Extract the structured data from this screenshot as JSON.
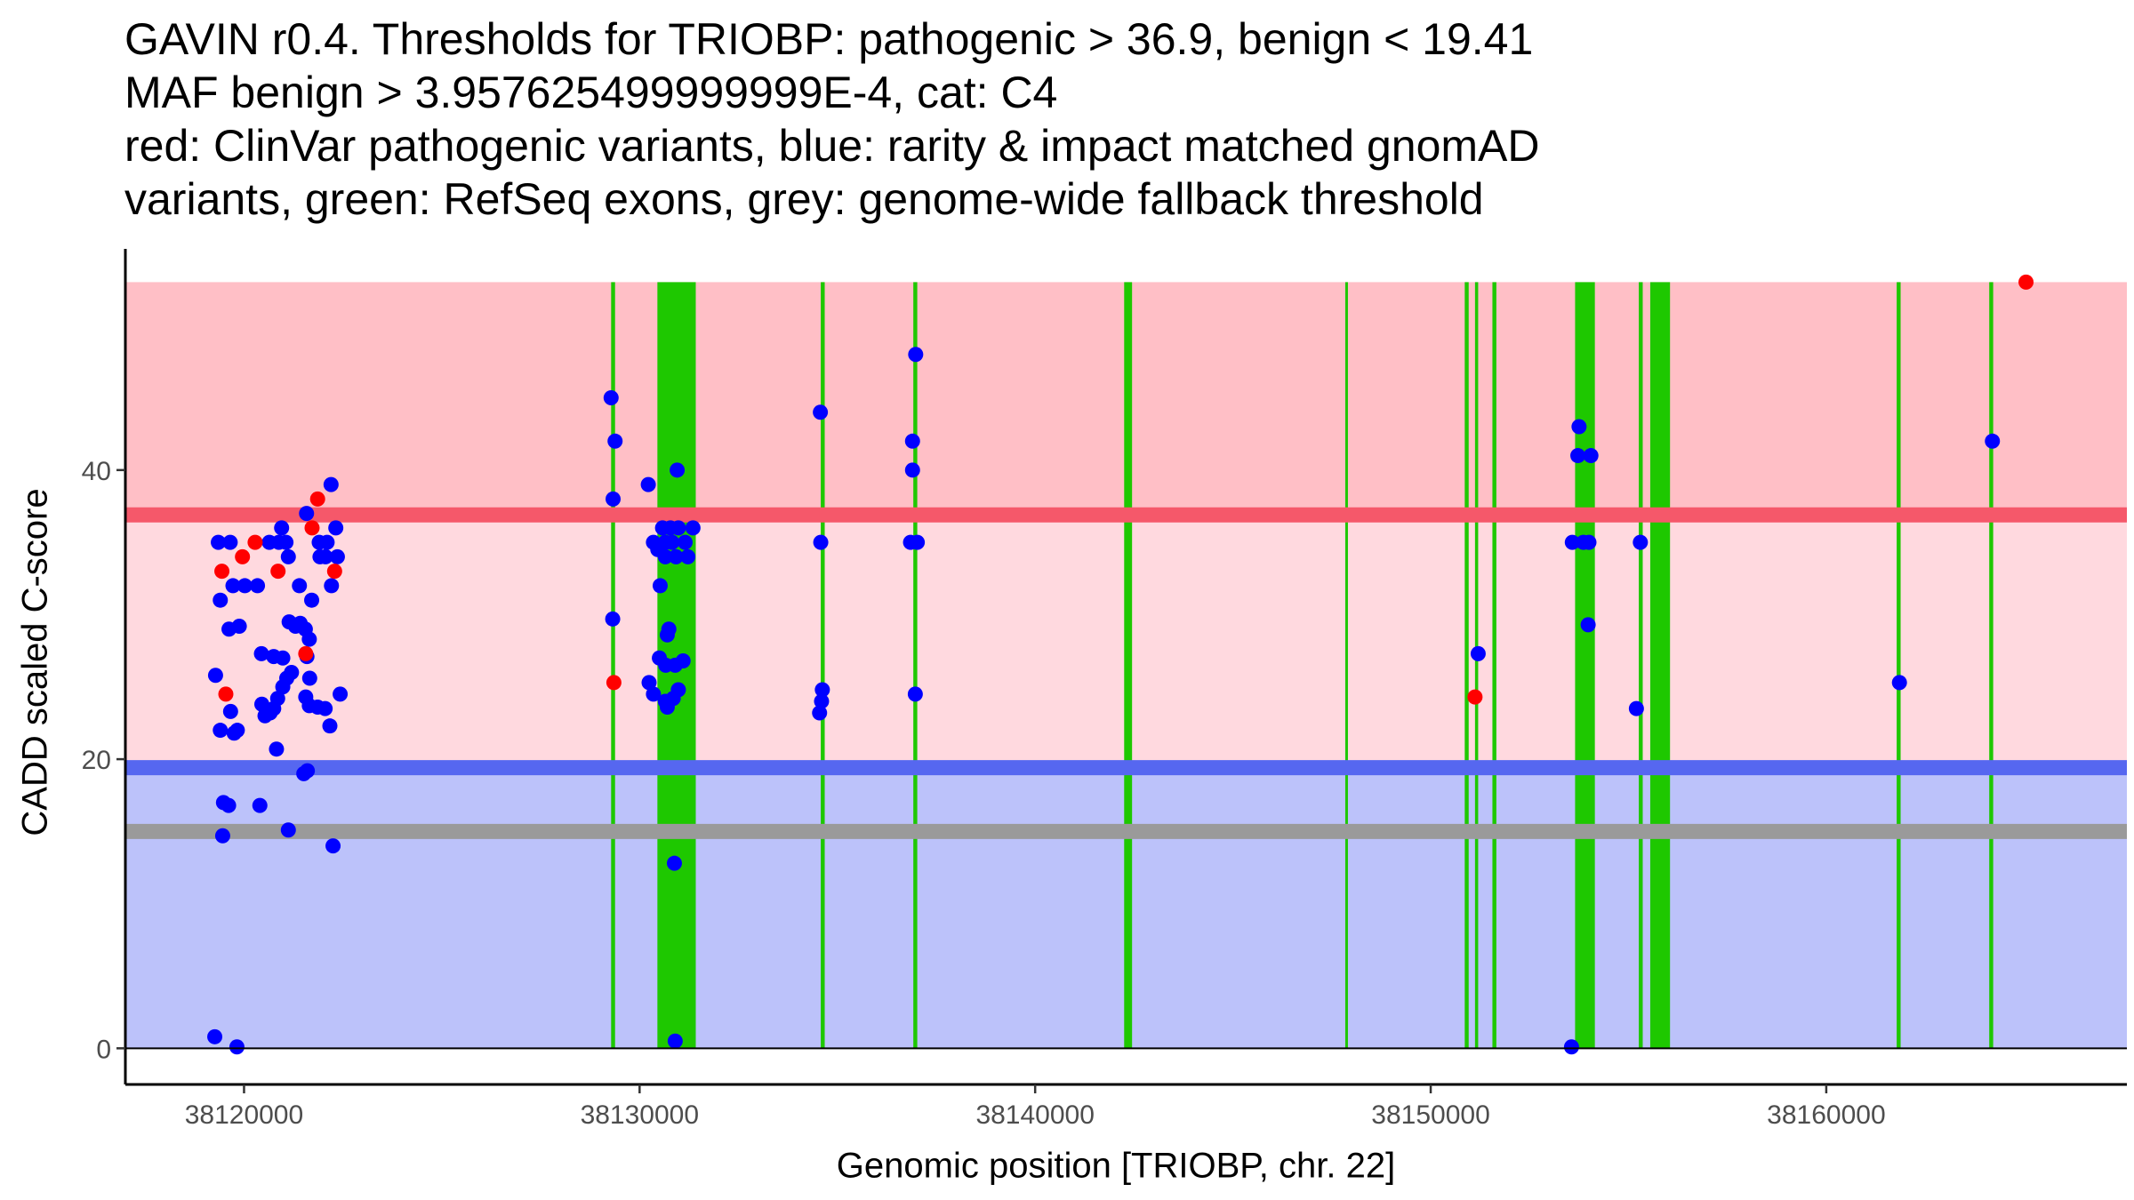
{
  "chart_data": {
    "type": "scatter",
    "title_lines": [
      "GAVIN r0.4. Thresholds for TRIOBP: pathogenic > 36.9, benign < 19.41",
      "MAF benign > 3.957625499999999E-4, cat: C4",
      "red: ClinVar pathogenic variants, blue: rarity & impact matched gnomAD",
      "variants, green: RefSeq exons, grey: genome-wide fallback threshold"
    ],
    "xlabel": "Genomic position [TRIOBP, chr. 22]",
    "ylabel": "CADD scaled C-score",
    "xlim": [
      38117000,
      38167600
    ],
    "ylim": [
      -2.5,
      55.3
    ],
    "x_ticks": [
      38120000,
      38130000,
      38140000,
      38150000,
      38160000
    ],
    "y_ticks": [
      0,
      20,
      40
    ],
    "thresholds": {
      "pathogenic": 36.9,
      "benign": 19.41,
      "genome_wide_fallback": 15,
      "max": 53
    },
    "colors": {
      "pathogenic_zone": "#ffbfc6",
      "vus_zone": "#ffd9df",
      "benign_zone": "#bcc2fa",
      "pathogenic_line": "#f5586a",
      "benign_line": "#5667f0",
      "fallback_line": "#9a9a9a",
      "exon": "#1ec800",
      "clinvar_point": "#ff0000",
      "gnomad_point": "#0000ff"
    },
    "exons": [
      [
        38129280,
        38129380
      ],
      [
        38130450,
        38131420
      ],
      [
        38134580,
        38134680
      ],
      [
        38136920,
        38137020
      ],
      [
        38142250,
        38142450
      ],
      [
        38147840,
        38147900
      ],
      [
        38150860,
        38150960
      ],
      [
        38151120,
        38151200
      ],
      [
        38151560,
        38151660
      ],
      [
        38153650,
        38154150
      ],
      [
        38155260,
        38155360
      ],
      [
        38155550,
        38156050
      ],
      [
        38161780,
        38161880
      ],
      [
        38164120,
        38164220
      ]
    ],
    "series": [
      {
        "name": "ClinVar pathogenic variants",
        "points": [
          [
            38119440,
            33
          ],
          [
            38119540,
            24.5
          ],
          [
            38119960,
            34
          ],
          [
            38120280,
            35
          ],
          [
            38120860,
            33
          ],
          [
            38121560,
            27.3
          ],
          [
            38121720,
            36
          ],
          [
            38121860,
            38
          ],
          [
            38122290,
            33
          ],
          [
            38129350,
            25.3
          ],
          [
            38151120,
            24.3
          ],
          [
            38165050,
            53
          ]
        ]
      },
      {
        "name": "rarity & impact matched gnomAD variants",
        "points": [
          [
            38119350,
            35
          ],
          [
            38119650,
            35
          ],
          [
            38119280,
            25.8
          ],
          [
            38119400,
            31
          ],
          [
            38119720,
            32
          ],
          [
            38120020,
            32
          ],
          [
            38120340,
            32
          ],
          [
            38119620,
            29
          ],
          [
            38119880,
            29.2
          ],
          [
            38119660,
            23.3
          ],
          [
            38119400,
            22
          ],
          [
            38119750,
            21.8
          ],
          [
            38119830,
            22
          ],
          [
            38120450,
            23.8
          ],
          [
            38120530,
            23
          ],
          [
            38120750,
            23.5
          ],
          [
            38120660,
            23.2
          ],
          [
            38120850,
            24.2
          ],
          [
            38120980,
            25
          ],
          [
            38121080,
            25.6
          ],
          [
            38120820,
            20.7
          ],
          [
            38120640,
            35
          ],
          [
            38120880,
            35
          ],
          [
            38120950,
            36
          ],
          [
            38121060,
            35
          ],
          [
            38121200,
            26
          ],
          [
            38121120,
            34
          ],
          [
            38120440,
            27.3
          ],
          [
            38120750,
            27.1
          ],
          [
            38120980,
            27
          ],
          [
            38121140,
            29.5
          ],
          [
            38121300,
            29.2
          ],
          [
            38121420,
            29.4
          ],
          [
            38121550,
            29
          ],
          [
            38121650,
            28.3
          ],
          [
            38121590,
            27.1
          ],
          [
            38121660,
            25.6
          ],
          [
            38121560,
            24.3
          ],
          [
            38121650,
            23.7
          ],
          [
            38121860,
            23.6
          ],
          [
            38122170,
            22.3
          ],
          [
            38122050,
            23.5
          ],
          [
            38121400,
            32
          ],
          [
            38121710,
            31
          ],
          [
            38121900,
            35
          ],
          [
            38122060,
            34
          ],
          [
            38121920,
            34
          ],
          [
            38122100,
            35
          ],
          [
            38122210,
            32
          ],
          [
            38122360,
            34
          ],
          [
            38122320,
            36
          ],
          [
            38122200,
            39
          ],
          [
            38121580,
            37
          ],
          [
            38122430,
            24.5
          ],
          [
            38119480,
            17
          ],
          [
            38119610,
            16.8
          ],
          [
            38120400,
            16.8
          ],
          [
            38121510,
            19
          ],
          [
            38121600,
            19.2
          ],
          [
            38119460,
            14.7
          ],
          [
            38121120,
            15.1
          ],
          [
            38122250,
            14
          ],
          [
            38119260,
            0.8
          ],
          [
            38119820,
            0.1
          ],
          [
            38129280,
            45
          ],
          [
            38129380,
            42
          ],
          [
            38129330,
            38
          ],
          [
            38129320,
            29.7
          ],
          [
            38130220,
            39
          ],
          [
            38130580,
            36
          ],
          [
            38130780,
            36
          ],
          [
            38130980,
            36
          ],
          [
            38130350,
            35
          ],
          [
            38130650,
            35
          ],
          [
            38130820,
            35
          ],
          [
            38131150,
            35
          ],
          [
            38130460,
            34.5
          ],
          [
            38130650,
            34
          ],
          [
            38130920,
            34
          ],
          [
            38131220,
            34
          ],
          [
            38131350,
            36
          ],
          [
            38130520,
            32
          ],
          [
            38130700,
            28.6
          ],
          [
            38130740,
            29
          ],
          [
            38130500,
            27
          ],
          [
            38130660,
            26.5
          ],
          [
            38131100,
            26.8
          ],
          [
            38130900,
            26.5
          ],
          [
            38130240,
            25.3
          ],
          [
            38130350,
            24.5
          ],
          [
            38130650,
            24
          ],
          [
            38130850,
            24.2
          ],
          [
            38130980,
            24.8
          ],
          [
            38130700,
            23.6
          ],
          [
            38130880,
            12.8
          ],
          [
            38130950,
            40
          ],
          [
            38130900,
            0.5
          ],
          [
            38134570,
            44
          ],
          [
            38134580,
            35
          ],
          [
            38134620,
            24.8
          ],
          [
            38134600,
            24
          ],
          [
            38134550,
            23.2
          ],
          [
            38136980,
            48
          ],
          [
            38136900,
            42
          ],
          [
            38136900,
            40
          ],
          [
            38136850,
            35
          ],
          [
            38137020,
            35
          ],
          [
            38136970,
            24.5
          ],
          [
            38151200,
            27.3
          ],
          [
            38153750,
            43
          ],
          [
            38153720,
            41
          ],
          [
            38153580,
            35
          ],
          [
            38153860,
            35
          ],
          [
            38154050,
            41
          ],
          [
            38154000,
            35
          ],
          [
            38153980,
            29.3
          ],
          [
            38155300,
            35
          ],
          [
            38155200,
            23.5
          ],
          [
            38153560,
            0.1
          ],
          [
            38161850,
            25.3
          ],
          [
            38164200,
            42
          ]
        ]
      }
    ]
  }
}
